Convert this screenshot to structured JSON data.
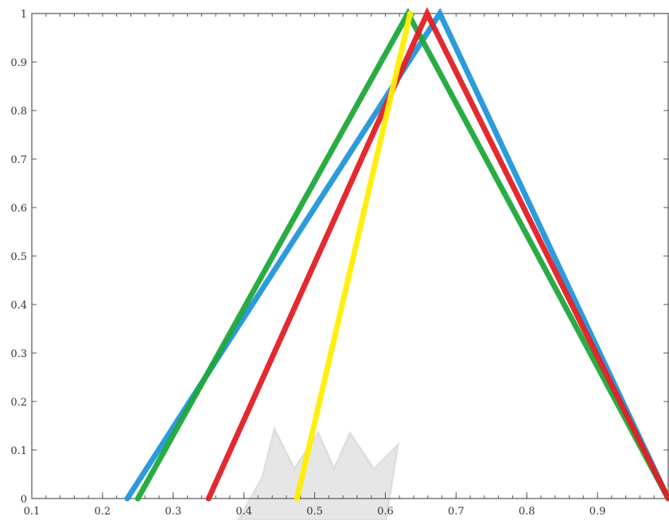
{
  "chart_data": {
    "type": "line",
    "title": "",
    "xlabel": "",
    "ylabel": "",
    "xlim": [
      0.1,
      1.0
    ],
    "ylim": [
      0,
      1
    ],
    "grid": false,
    "legend": "none",
    "x_ticks": [
      0.1,
      0.2,
      0.3,
      0.4,
      0.5,
      0.6,
      0.7,
      0.8,
      0.9
    ],
    "x_tick_labels": [
      "0.1",
      "0.2",
      "0.3",
      "0.4",
      "0.5",
      "0.6",
      "0.7",
      "0.8",
      "0.9"
    ],
    "y_ticks": [
      0,
      0.1,
      0.2,
      0.3,
      0.4,
      0.5,
      0.6,
      0.7,
      0.8,
      0.9,
      1
    ],
    "y_tick_labels": [
      "0",
      "0.1",
      "0.2",
      "0.3",
      "0.4",
      "0.5",
      "0.6",
      "0.7",
      "0.8",
      "0.9",
      "1"
    ],
    "series": [
      {
        "color": "#2196d9",
        "x": [
          0.235,
          0.677,
          1.0
        ],
        "y": [
          0,
          1,
          0
        ]
      },
      {
        "color": "#1fa83a",
        "x": [
          0.25,
          0.632,
          1.0
        ],
        "y": [
          0,
          1,
          0
        ]
      },
      {
        "color": "#e11f26",
        "x": [
          0.35,
          0.659,
          1.0
        ],
        "y": [
          0,
          1,
          0
        ]
      },
      {
        "color": "#ffee00",
        "x": [
          0.475,
          0.635
        ],
        "y": [
          0,
          1
        ]
      }
    ]
  }
}
